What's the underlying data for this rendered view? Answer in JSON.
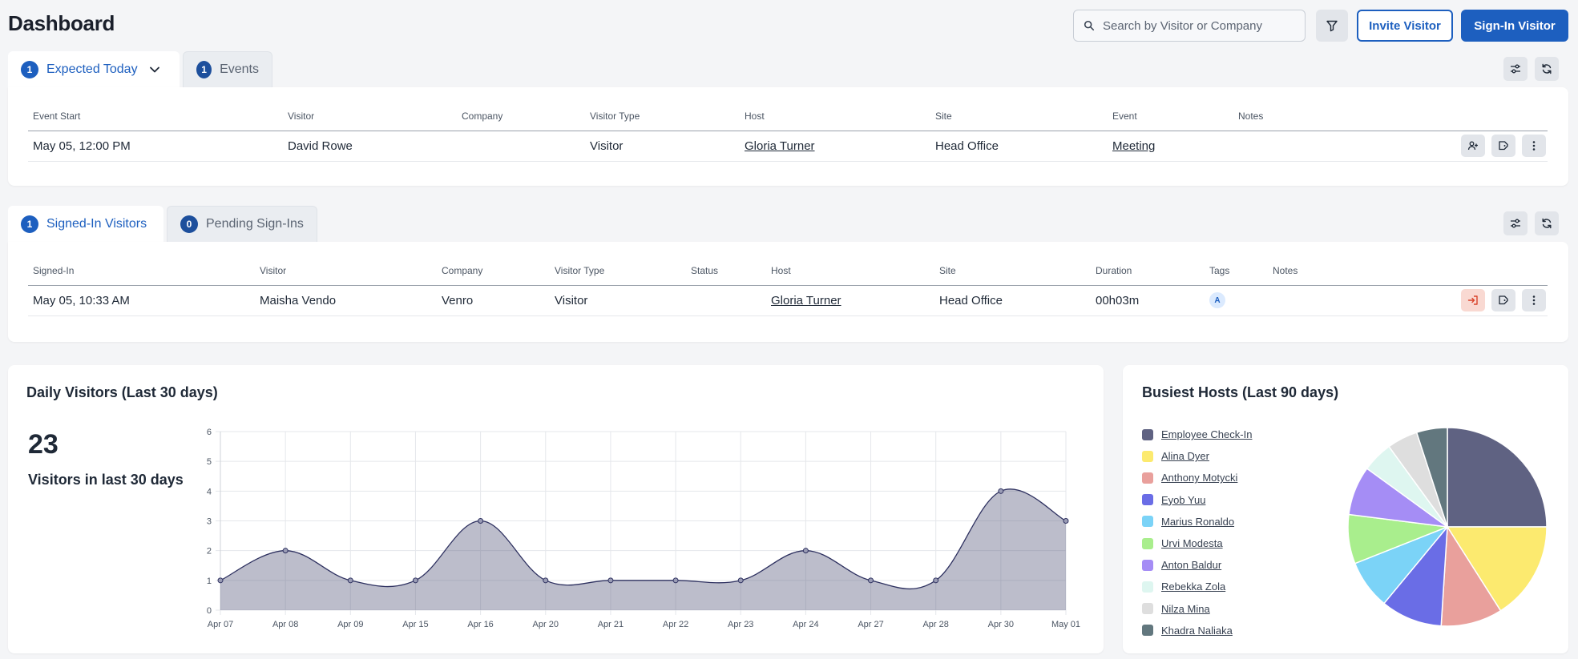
{
  "header": {
    "title": "Dashboard",
    "search_placeholder": "Search by Visitor or Company",
    "invite_label": "Invite Visitor",
    "signin_label": "Sign-In Visitor",
    "accent": "#1d5fbf"
  },
  "expected": {
    "tabs": [
      {
        "count": "1",
        "label": "Expected Today"
      },
      {
        "count": "1",
        "label": "Events"
      }
    ],
    "columns": [
      "Event Start",
      "Visitor",
      "Company",
      "Visitor Type",
      "Host",
      "Site",
      "Event",
      "Notes"
    ],
    "rows": [
      {
        "event_start": "May 05, 12:00 PM",
        "visitor": "David Rowe",
        "company": "",
        "visitor_type": "Visitor",
        "host": "Gloria Turner",
        "site": "Head Office",
        "event": "Meeting",
        "notes": ""
      }
    ]
  },
  "signed_in": {
    "tabs": [
      {
        "count": "1",
        "label": "Signed-In Visitors"
      },
      {
        "count": "0",
        "label": "Pending Sign-Ins"
      }
    ],
    "columns": [
      "Signed-In",
      "Visitor",
      "Company",
      "Visitor Type",
      "Status",
      "Host",
      "Site",
      "Duration",
      "Tags",
      "Notes"
    ],
    "rows": [
      {
        "signed_in": "May 05, 10:33 AM",
        "visitor": "Maisha Vendo",
        "company": "Venro",
        "visitor_type": "Visitor",
        "status": "",
        "host": "Gloria Turner",
        "site": "Head Office",
        "duration": "00h03m",
        "tag": "A",
        "notes": ""
      }
    ]
  },
  "daily": {
    "title": "Daily Visitors (Last 30 days)",
    "total": "23",
    "total_label": "Visitors in last 30 days"
  },
  "hosts": {
    "title": "Busiest Hosts (Last 90 days)"
  },
  "chart_data": [
    {
      "type": "area",
      "title": "Daily Visitors (Last 30 days)",
      "xlabel": "",
      "ylabel": "",
      "categories": [
        "Apr 07",
        "Apr 08",
        "Apr 09",
        "Apr 15",
        "Apr 16",
        "Apr 20",
        "Apr 21",
        "Apr 22",
        "Apr 23",
        "Apr 24",
        "Apr 27",
        "Apr 28",
        "Apr 30",
        "May 01"
      ],
      "values": [
        1,
        2,
        1,
        1,
        3,
        1,
        1,
        1,
        1,
        2,
        1,
        1,
        4,
        3
      ],
      "ylim": [
        0,
        6
      ],
      "yticks": [
        "0",
        "1",
        "2",
        "3",
        "4",
        "5",
        "6"
      ],
      "grid": true,
      "color": "#5f6282"
    },
    {
      "type": "pie",
      "title": "Busiest Hosts (Last 90 days)",
      "legend_position": "left",
      "slices": [
        {
          "label": "Employee Check-In",
          "value": 25,
          "color": "#5f6282"
        },
        {
          "label": "Alina Dyer",
          "value": 16,
          "color": "#fcea6f"
        },
        {
          "label": "Anthony Motycki",
          "value": 10,
          "color": "#e9a09c"
        },
        {
          "label": "Eyob Yuu",
          "value": 10,
          "color": "#6a6de6"
        },
        {
          "label": "Marius Ronaldo",
          "value": 8,
          "color": "#7bd3f7"
        },
        {
          "label": "Urvi Modesta",
          "value": 8,
          "color": "#a9ee8d"
        },
        {
          "label": "Anton Baldur",
          "value": 8,
          "color": "#a58df5"
        },
        {
          "label": "Rebekka Zola",
          "value": 5,
          "color": "#def6f0"
        },
        {
          "label": "Nilza Mina",
          "value": 5,
          "color": "#dedede"
        },
        {
          "label": "Khadra Naliaka",
          "value": 5,
          "color": "#62777e"
        }
      ]
    }
  ]
}
